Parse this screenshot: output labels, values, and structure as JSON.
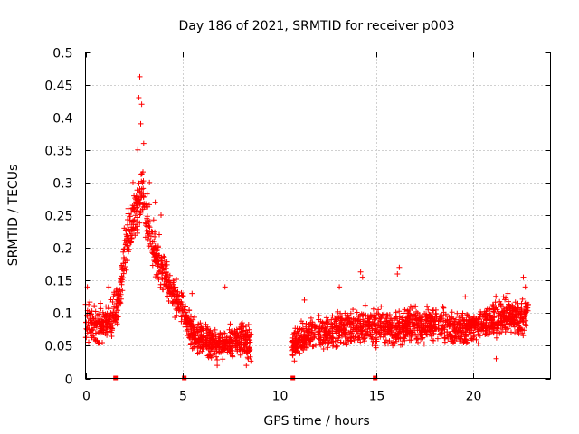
{
  "chart_data": {
    "type": "scatter",
    "title": "Day 186 of 2021, SRMTID for receiver p003",
    "xlabel": "GPS time / hours",
    "ylabel": "SRMTID / TECUs",
    "xlim": [
      0,
      24
    ],
    "ylim": [
      0,
      0.5
    ],
    "x_ticks": [
      0,
      5,
      10,
      15,
      20
    ],
    "x_tick_labels": [
      "0",
      "5",
      "10",
      "15",
      "20"
    ],
    "y_ticks": [
      0,
      0.05,
      0.1,
      0.15,
      0.2,
      0.25,
      0.3,
      0.35,
      0.4,
      0.45,
      0.5
    ],
    "y_tick_labels": [
      "0",
      "0.05",
      "0.1",
      "0.15",
      "0.2",
      "0.25",
      "0.3",
      "0.35",
      "0.4",
      "0.45",
      "0.5"
    ],
    "grid": true,
    "marker": "+",
    "color": "#ff0000",
    "gap_markers_x": [
      1.55,
      5.1,
      10.7,
      14.95
    ],
    "series": [
      {
        "name": "SRMTID",
        "trend": [
          [
            0.0,
            0.09
          ],
          [
            0.5,
            0.08
          ],
          [
            1.0,
            0.085
          ],
          [
            1.3,
            0.09
          ],
          [
            1.6,
            0.11
          ],
          [
            1.8,
            0.13
          ],
          [
            2.0,
            0.19
          ],
          [
            2.3,
            0.23
          ],
          [
            2.6,
            0.26
          ],
          [
            2.9,
            0.28
          ],
          [
            3.2,
            0.24
          ],
          [
            3.5,
            0.2
          ],
          [
            3.8,
            0.18
          ],
          [
            4.1,
            0.16
          ],
          [
            4.4,
            0.14
          ],
          [
            4.7,
            0.12
          ],
          [
            5.0,
            0.11
          ],
          [
            5.2,
            0.09
          ],
          [
            5.5,
            0.07
          ],
          [
            6.0,
            0.06
          ],
          [
            6.5,
            0.055
          ],
          [
            7.0,
            0.055
          ],
          [
            7.5,
            0.055
          ],
          [
            8.0,
            0.06
          ],
          [
            8.5,
            0.055
          ],
          [
            10.7,
            0.05
          ],
          [
            11.0,
            0.055
          ],
          [
            11.5,
            0.065
          ],
          [
            12.0,
            0.075
          ],
          [
            12.5,
            0.07
          ],
          [
            13.0,
            0.075
          ],
          [
            13.5,
            0.075
          ],
          [
            14.0,
            0.08
          ],
          [
            14.5,
            0.08
          ],
          [
            15.0,
            0.08
          ],
          [
            15.5,
            0.08
          ],
          [
            16.0,
            0.075
          ],
          [
            16.5,
            0.08
          ],
          [
            17.0,
            0.085
          ],
          [
            17.5,
            0.08
          ],
          [
            18.0,
            0.085
          ],
          [
            18.5,
            0.08
          ],
          [
            19.0,
            0.075
          ],
          [
            19.5,
            0.075
          ],
          [
            20.0,
            0.08
          ],
          [
            20.5,
            0.085
          ],
          [
            21.0,
            0.09
          ],
          [
            21.5,
            0.095
          ],
          [
            22.0,
            0.095
          ],
          [
            22.5,
            0.09
          ],
          [
            22.8,
            0.1
          ]
        ],
        "outliers": [
          [
            2.8,
            0.462
          ],
          [
            2.75,
            0.43
          ],
          [
            2.9,
            0.42
          ],
          [
            2.85,
            0.39
          ],
          [
            3.0,
            0.36
          ],
          [
            2.7,
            0.35
          ],
          [
            2.45,
            0.3
          ],
          [
            3.3,
            0.3
          ],
          [
            3.6,
            0.27
          ],
          [
            3.9,
            0.25
          ],
          [
            2.2,
            0.26
          ],
          [
            2.0,
            0.23
          ],
          [
            14.2,
            0.163
          ],
          [
            14.3,
            0.155
          ],
          [
            16.2,
            0.17
          ],
          [
            16.1,
            0.16
          ],
          [
            13.1,
            0.14
          ],
          [
            22.6,
            0.155
          ],
          [
            22.7,
            0.14
          ],
          [
            21.8,
            0.13
          ],
          [
            19.6,
            0.125
          ],
          [
            11.3,
            0.12
          ],
          [
            0.1,
            0.14
          ],
          [
            1.2,
            0.14
          ],
          [
            7.2,
            0.14
          ],
          [
            5.5,
            0.13
          ],
          [
            8.3,
            0.02
          ],
          [
            8.4,
            0.03
          ],
          [
            6.8,
            0.02
          ],
          [
            21.2,
            0.03
          ]
        ],
        "spread": 0.03,
        "points_per_hour": 120,
        "coverage": [
          [
            0.0,
            8.55
          ],
          [
            10.65,
            22.85
          ]
        ]
      }
    ]
  }
}
